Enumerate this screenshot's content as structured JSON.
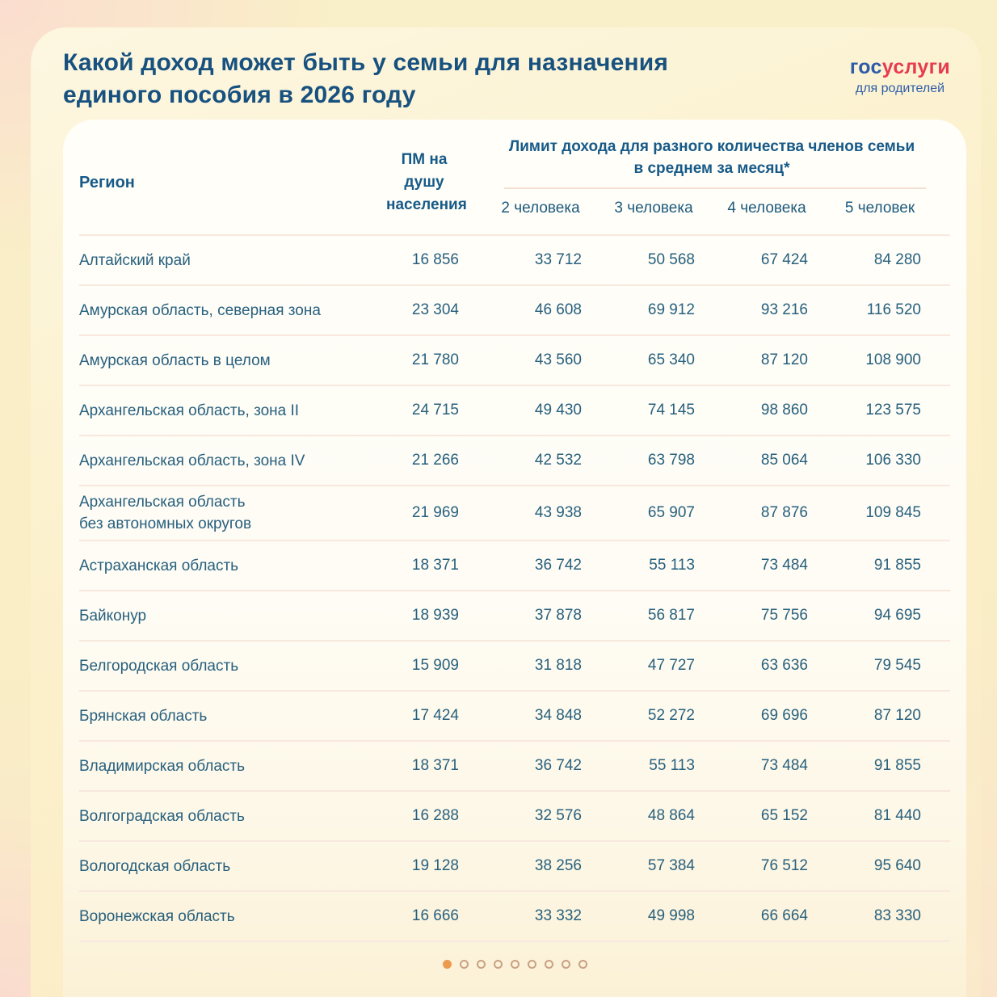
{
  "page": {
    "title_lines": [
      "Какой доход может быть у семьи для назначения",
      "единого пособия в 2026 году"
    ],
    "logo": {
      "blue": "гос",
      "red": "услуги",
      "tagline": "для родителей"
    }
  },
  "table": {
    "region_header": "Регион",
    "pm_header": "ПМ на душу населения",
    "group_header_lines": [
      "Лимит дохода для разного количества членов семьи",
      "в среднем за месяц*"
    ],
    "sub_headers": [
      "2 человека",
      "3 человека",
      "4 человека",
      "5 человек"
    ],
    "rows": [
      {
        "region": "Алтайский край",
        "pm": "16 856",
        "v2": "33 712",
        "v3": "50 568",
        "v4": "67 424",
        "v5": "84 280"
      },
      {
        "region": "Амурская область, северная зона",
        "pm": "23 304",
        "v2": "46 608",
        "v3": "69 912",
        "v4": "93 216",
        "v5": "116 520"
      },
      {
        "region": "Амурская область в целом",
        "pm": "21 780",
        "v2": "43 560",
        "v3": "65 340",
        "v4": "87 120",
        "v5": "108 900"
      },
      {
        "region": "Архангельская область, зона II",
        "pm": "24 715",
        "v2": "49 430",
        "v3": "74 145",
        "v4": "98 860",
        "v5": "123 575"
      },
      {
        "region": "Архангельская область, зона IV",
        "pm": "21 266",
        "v2": "42 532",
        "v3": "63 798",
        "v4": "85 064",
        "v5": "106 330"
      },
      {
        "region": "Архангельская область\nбез автономных округов",
        "pm": "21 969",
        "v2": "43 938",
        "v3": "65 907",
        "v4": "87 876",
        "v5": "109 845"
      },
      {
        "region": "Астраханская область",
        "pm": "18 371",
        "v2": "36 742",
        "v3": "55 113",
        "v4": "73 484",
        "v5": "91 855"
      },
      {
        "region": "Байконур",
        "pm": "18 939",
        "v2": "37 878",
        "v3": "56 817",
        "v4": "75 756",
        "v5": "94 695"
      },
      {
        "region": "Белгородская область",
        "pm": "15 909",
        "v2": "31 818",
        "v3": "47 727",
        "v4": "63 636",
        "v5": "79 545"
      },
      {
        "region": "Брянская область",
        "pm": "17 424",
        "v2": "34 848",
        "v3": "52 272",
        "v4": "69 696",
        "v5": "87 120"
      },
      {
        "region": "Владимирская область",
        "pm": "18 371",
        "v2": "36 742",
        "v3": "55 113",
        "v4": "73 484",
        "v5": "91 855"
      },
      {
        "region": "Волгоградская область",
        "pm": "16 288",
        "v2": "32 576",
        "v3": "48 864",
        "v4": "65 152",
        "v5": "81 440"
      },
      {
        "region": "Вологодская область",
        "pm": "19 128",
        "v2": "38 256",
        "v3": "57 384",
        "v4": "76 512",
        "v5": "95 640"
      },
      {
        "region": "Воронежская область",
        "pm": "16 666",
        "v2": "33 332",
        "v3": "49 998",
        "v4": "66 664",
        "v5": "83 330"
      }
    ]
  },
  "pagination": {
    "dot_count": 9,
    "active_index": 0
  },
  "colors": {
    "title_blue": "#17517f",
    "header_blue": "#175a88",
    "body_text": "#27607e",
    "logo_blue": "#2d5ca8",
    "logo_red": "#e73c50",
    "separator": "#f8e8dd",
    "dot_active": "#ec9a4d",
    "dot_inactive_border": "#c9a183",
    "bg_peach": "#fbddcf",
    "bg_yellow": "#f9eec6"
  },
  "chart_data": {
    "type": "table",
    "title": "Какой доход может быть у семьи для назначения единого пособия в 2026 году",
    "group_header": "Лимит дохода для разного количества членов семьи в среднем за месяц*",
    "columns": [
      "Регион",
      "ПМ на душу населения",
      "2 человека",
      "3 человека",
      "4 человека",
      "5 человек"
    ],
    "rows": [
      [
        "Алтайский край",
        16856,
        33712,
        50568,
        67424,
        84280
      ],
      [
        "Амурская область, северная зона",
        23304,
        46608,
        69912,
        93216,
        116520
      ],
      [
        "Амурская область в целом",
        21780,
        43560,
        65340,
        87120,
        108900
      ],
      [
        "Архангельская область, зона II",
        24715,
        49430,
        74145,
        98860,
        123575
      ],
      [
        "Архангельская область, зона IV",
        21266,
        42532,
        63798,
        85064,
        106330
      ],
      [
        "Архангельская область без автономных округов",
        21969,
        43938,
        65907,
        87876,
        109845
      ],
      [
        "Астраханская область",
        18371,
        36742,
        55113,
        73484,
        91855
      ],
      [
        "Байконур",
        18939,
        37878,
        56817,
        75756,
        94695
      ],
      [
        "Белгородская область",
        15909,
        31818,
        47727,
        63636,
        79545
      ],
      [
        "Брянская область",
        17424,
        34848,
        52272,
        69696,
        87120
      ],
      [
        "Владимирская область",
        18371,
        36742,
        55113,
        73484,
        91855
      ],
      [
        "Волгоградская область",
        16288,
        32576,
        48864,
        65152,
        81440
      ],
      [
        "Вологодская область",
        19128,
        38256,
        57384,
        76512,
        95640
      ],
      [
        "Воронежская область",
        16666,
        33332,
        49998,
        66664,
        83330
      ]
    ]
  }
}
